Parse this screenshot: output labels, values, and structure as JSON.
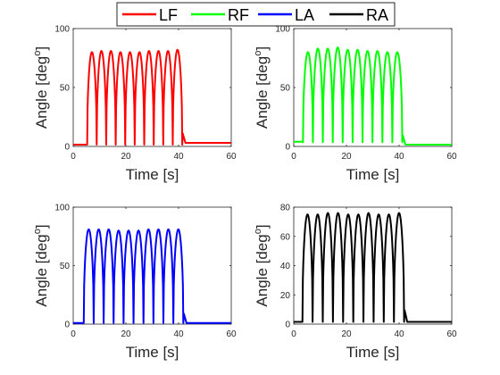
{
  "legend": {
    "placement": "top-center",
    "entries": [
      {
        "name": "LF",
        "color": "#ff0000"
      },
      {
        "name": "RF",
        "color": "#00ff00"
      },
      {
        "name": "LA",
        "color": "#0000ff"
      },
      {
        "name": "RA",
        "color": "#000000"
      }
    ]
  },
  "chart_data": [
    {
      "type": "line",
      "series": [
        {
          "name": "LF",
          "color": "#ff0000"
        }
      ],
      "xlabel": "Time [s]",
      "ylabel": "Angle [deg",
      "ylabel_sup": "o",
      "ylabel_close": "]",
      "xlim": [
        0,
        60
      ],
      "ylim": [
        0,
        100
      ],
      "xticks": [
        0,
        20,
        40,
        60
      ],
      "yticks": [
        0,
        50,
        100
      ],
      "cycles": {
        "t_start": 5.3,
        "t_end": 41.4,
        "count": 10,
        "low": 1.5,
        "peaks": [
          80,
          81,
          81,
          80,
          80,
          80,
          81,
          81,
          81,
          82
        ]
      },
      "baseline_start": 1.5,
      "baseline_end": 3.0,
      "end_time": 60
    },
    {
      "type": "line",
      "series": [
        {
          "name": "RF",
          "color": "#00ff00"
        }
      ],
      "xlabel": "Time [s]",
      "ylabel": "Angle [deg",
      "ylabel_sup": "o",
      "ylabel_close": "]",
      "xlim": [
        0,
        60
      ],
      "ylim": [
        0,
        100
      ],
      "xticks": [
        0,
        20,
        40,
        60
      ],
      "yticks": [
        0,
        50,
        100
      ],
      "cycles": {
        "t_start": 3.5,
        "t_end": 41.2,
        "count": 10,
        "low": 3.5,
        "peaks": [
          80,
          83,
          83,
          84,
          82,
          82,
          81,
          81,
          80,
          80
        ]
      },
      "baseline_start": 4.0,
      "baseline_end": 1.5,
      "end_time": 60
    },
    {
      "type": "line",
      "series": [
        {
          "name": "LA",
          "color": "#0000ff"
        }
      ],
      "xlabel": "Time [s]",
      "ylabel": "Angle [deg",
      "ylabel_sup": "o",
      "ylabel_close": "]",
      "xlim": [
        0,
        60
      ],
      "ylim": [
        0,
        100
      ],
      "xticks": [
        0,
        20,
        40,
        60
      ],
      "yticks": [
        0,
        50,
        100
      ],
      "cycles": {
        "t_start": 4.0,
        "t_end": 41.8,
        "count": 10,
        "low": 1.0,
        "peaks": [
          81,
          81,
          81,
          80,
          80,
          80,
          81,
          81,
          81,
          81
        ]
      },
      "baseline_start": 1.0,
      "baseline_end": 1.0,
      "end_time": 60
    },
    {
      "type": "line",
      "series": [
        {
          "name": "RA",
          "color": "#000000"
        }
      ],
      "xlabel": "Time [s]",
      "ylabel": "Angle [deg",
      "ylabel_sup": "o",
      "ylabel_close": "]",
      "xlim": [
        0,
        60
      ],
      "ylim": [
        0,
        80
      ],
      "xticks": [
        0,
        20,
        40,
        60
      ],
      "yticks": [
        0,
        20,
        40,
        60,
        80
      ],
      "cycles": {
        "t_start": 3.3,
        "t_end": 41.9,
        "count": 10,
        "low": 1.5,
        "peaks": [
          75,
          75,
          76,
          76,
          75,
          75,
          76,
          75,
          75,
          76
        ]
      },
      "baseline_start": 1.5,
      "baseline_end": 1.5,
      "end_time": 60
    }
  ]
}
